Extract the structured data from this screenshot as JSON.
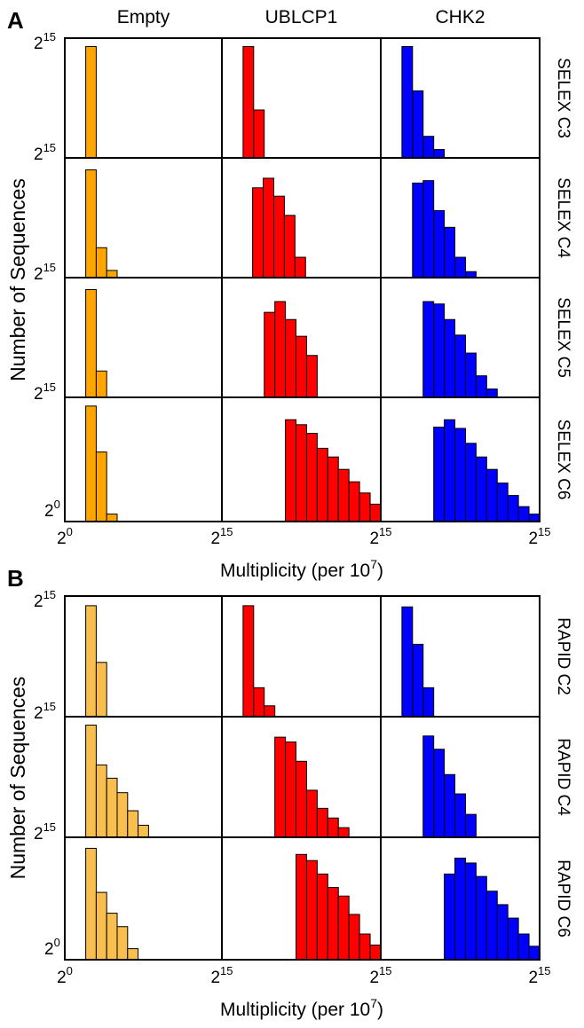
{
  "chart_data": [
    {
      "type": "bar",
      "panel_label": "A",
      "column_titles": [
        "Empty",
        "UBLCP1",
        "CHK2"
      ],
      "row_labels": [
        "SELEX C3",
        "SELEX C4",
        "SELEX C5",
        "SELEX C6"
      ],
      "xlabel": "Multiplicity (per 10",
      "xlabel_sup": "7",
      "xlabel_close": ")",
      "ylabel": "Number of Sequences",
      "x_ticks": [
        {
          "base": "2",
          "exp": "0"
        },
        {
          "base": "2",
          "exp": "15"
        },
        {
          "base": "2",
          "exp": "15"
        },
        {
          "base": "2",
          "exp": "15"
        }
      ],
      "y_tick_top": {
        "base": "2",
        "exp": "15"
      },
      "y_tick_bottom": {
        "base": "2",
        "exp": "0"
      },
      "y_ticks_between_rows": {
        "base": "2",
        "exp": "15"
      },
      "x_range_per_column_log2": [
        0,
        15
      ],
      "y_scale_note": "relative bar heights, 0-1 of row height",
      "colors": {
        "Empty": "#FFA500",
        "UBLCP1": "#FF0000",
        "CHK2": "#0000FF"
      },
      "series": [
        {
          "row": 0,
          "column": 0,
          "bin_start": 2,
          "values": [
            0.93
          ]
        },
        {
          "row": 0,
          "column": 1,
          "bin_start": 2,
          "values": [
            0.93,
            0.4
          ]
        },
        {
          "row": 0,
          "column": 2,
          "bin_start": 2,
          "values": [
            0.93,
            0.56,
            0.18,
            0.07
          ]
        },
        {
          "row": 1,
          "column": 0,
          "bin_start": 2,
          "values": [
            0.9,
            0.25,
            0.06
          ]
        },
        {
          "row": 1,
          "column": 1,
          "bin_start": 2.9,
          "values": [
            0.75,
            0.83,
            0.68,
            0.52,
            0.17
          ]
        },
        {
          "row": 1,
          "column": 2,
          "bin_start": 3,
          "values": [
            0.79,
            0.81,
            0.56,
            0.42,
            0.17,
            0.05
          ]
        },
        {
          "row": 1,
          "column": 2,
          "bin_start": 3.5,
          "values": []
        },
        {
          "row": 2,
          "column": 0,
          "bin_start": 2,
          "values": [
            0.9,
            0.22
          ]
        },
        {
          "row": 2,
          "column": 1,
          "bin_start": 4,
          "values": [
            0.71,
            0.8,
            0.65,
            0.51,
            0.35
          ]
        },
        {
          "row": 2,
          "column": 2,
          "bin_start": 4,
          "values": [
            0.8,
            0.78,
            0.65,
            0.52,
            0.37,
            0.18,
            0.07
          ]
        },
        {
          "row": 3,
          "column": 0,
          "bin_start": 2,
          "values": [
            0.93,
            0.56,
            0.06
          ]
        },
        {
          "row": 3,
          "column": 1,
          "bin_start": 6,
          "values": [
            0.82,
            0.78,
            0.71,
            0.59,
            0.52,
            0.42,
            0.32,
            0.23,
            0.14
          ]
        },
        {
          "row": 3,
          "column": 2,
          "bin_start": 5,
          "values": [
            0.76,
            0.82,
            0.75,
            0.63,
            0.52,
            0.42,
            0.31,
            0.21,
            0.12,
            0.06
          ]
        }
      ]
    },
    {
      "type": "bar",
      "panel_label": "B",
      "row_labels": [
        "RAPID C2",
        "RAPID C4",
        "RAPID C6"
      ],
      "xlabel": "Multiplicity (per 10",
      "xlabel_sup": "7",
      "xlabel_close": ")",
      "ylabel": "Number of Sequences",
      "x_ticks": [
        {
          "base": "2",
          "exp": "0"
        },
        {
          "base": "2",
          "exp": "15"
        },
        {
          "base": "2",
          "exp": "15"
        },
        {
          "base": "2",
          "exp": "15"
        }
      ],
      "y_tick_top": {
        "base": "2",
        "exp": "15"
      },
      "y_tick_bottom": {
        "base": "2",
        "exp": "0"
      },
      "y_ticks_between_rows": {
        "base": "2",
        "exp": "15"
      },
      "x_range_per_column_log2": [
        0,
        15
      ],
      "y_scale_note": "relative bar heights, 0-1 of row height",
      "colors": {
        "Empty": "#F8BF4E",
        "UBLCP1": "#FF0000",
        "CHK2": "#0000FF"
      },
      "series": [
        {
          "row": 0,
          "column": 0,
          "bin_start": 2,
          "values": [
            0.92,
            0.45
          ]
        },
        {
          "row": 0,
          "column": 1,
          "bin_start": 2,
          "values": [
            0.92,
            0.24,
            0.09
          ]
        },
        {
          "row": 0,
          "column": 2,
          "bin_start": 2,
          "values": [
            0.91,
            0.6,
            0.24
          ]
        },
        {
          "row": 1,
          "column": 0,
          "bin_start": 2,
          "values": [
            0.93,
            0.6,
            0.49,
            0.37,
            0.22,
            0.1
          ]
        },
        {
          "row": 1,
          "column": 1,
          "bin_start": 5,
          "values": [
            0.83,
            0.79,
            0.63,
            0.39,
            0.24,
            0.16,
            0.08
          ]
        },
        {
          "row": 1,
          "column": 2,
          "bin_start": 4,
          "values": [
            0.84,
            0.73,
            0.52,
            0.36,
            0.19
          ]
        },
        {
          "row": 2,
          "column": 0,
          "bin_start": 2,
          "values": [
            0.91,
            0.55,
            0.38,
            0.27,
            0.09
          ]
        },
        {
          "row": 2,
          "column": 1,
          "bin_start": 7,
          "values": [
            0.86,
            0.81,
            0.7,
            0.59,
            0.52,
            0.37,
            0.21,
            0.12
          ]
        },
        {
          "row": 2,
          "column": 2,
          "bin_start": 6,
          "values": [
            0.7,
            0.83,
            0.79,
            0.68,
            0.56,
            0.45,
            0.34,
            0.21,
            0.11
          ]
        }
      ]
    }
  ]
}
